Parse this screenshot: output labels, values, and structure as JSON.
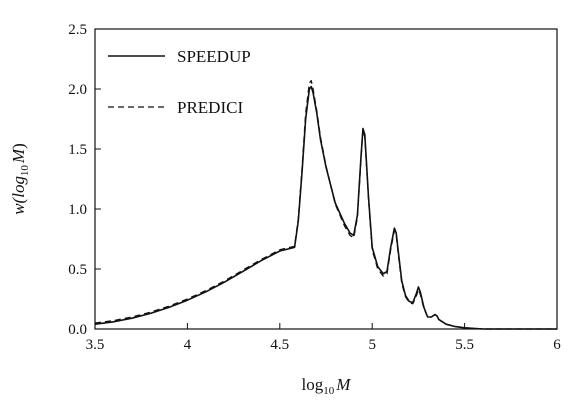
{
  "chart_data": {
    "type": "line",
    "title": "",
    "xlabel": {
      "base": "log",
      "sub": "10",
      "var": "M"
    },
    "ylabel": {
      "prefix": "w(log",
      "sub": "10",
      "var": "M",
      "suffix": ")"
    },
    "xlim": [
      3.5,
      6.0
    ],
    "ylim": [
      0.0,
      2.5
    ],
    "xticks": [
      3.5,
      4,
      4.5,
      5,
      5.5,
      6
    ],
    "xtick_labels": [
      "3.5",
      "4",
      "4.5",
      "5",
      "5.5",
      "6"
    ],
    "yticks": [
      0.0,
      0.5,
      1.0,
      1.5,
      2.0,
      2.5
    ],
    "ytick_labels": [
      "0.0",
      "0.5",
      "1.0",
      "1.5",
      "2.0",
      "2.5"
    ],
    "grid": false,
    "legend_position": "top-left",
    "series": [
      {
        "name": "SPEEDUP",
        "style": "solid",
        "color": "#111111",
        "x": [
          3.5,
          3.6,
          3.7,
          3.8,
          3.9,
          4.0,
          4.1,
          4.2,
          4.3,
          4.4,
          4.5,
          4.58,
          4.6,
          4.62,
          4.64,
          4.66,
          4.67,
          4.68,
          4.7,
          4.72,
          4.75,
          4.8,
          4.85,
          4.88,
          4.9,
          4.92,
          4.94,
          4.95,
          4.96,
          4.98,
          5.0,
          5.03,
          5.06,
          5.08,
          5.1,
          5.12,
          5.13,
          5.14,
          5.16,
          5.18,
          5.2,
          5.22,
          5.24,
          5.25,
          5.26,
          5.28,
          5.3,
          5.32,
          5.34,
          5.35,
          5.36,
          5.4,
          5.45,
          5.5,
          5.6,
          6.0
        ],
        "y": [
          0.04,
          0.06,
          0.09,
          0.13,
          0.18,
          0.24,
          0.31,
          0.39,
          0.48,
          0.57,
          0.65,
          0.68,
          0.9,
          1.3,
          1.75,
          2.0,
          2.02,
          1.97,
          1.8,
          1.58,
          1.35,
          1.05,
          0.88,
          0.8,
          0.78,
          0.95,
          1.45,
          1.67,
          1.62,
          1.1,
          0.68,
          0.52,
          0.46,
          0.48,
          0.68,
          0.84,
          0.8,
          0.66,
          0.4,
          0.28,
          0.23,
          0.22,
          0.3,
          0.35,
          0.31,
          0.18,
          0.1,
          0.1,
          0.12,
          0.11,
          0.08,
          0.04,
          0.02,
          0.01,
          0.0,
          0.0
        ]
      },
      {
        "name": "PREDICI",
        "style": "dashed",
        "color": "#111111",
        "x": [
          3.5,
          3.6,
          3.7,
          3.8,
          3.9,
          4.0,
          4.1,
          4.2,
          4.3,
          4.4,
          4.5,
          4.58,
          4.6,
          4.62,
          4.64,
          4.66,
          4.67,
          4.68,
          4.7,
          4.72,
          4.75,
          4.8,
          4.85,
          4.88,
          4.9,
          4.92,
          4.94,
          4.95,
          4.96,
          4.98,
          5.0,
          5.03,
          5.06,
          5.08,
          5.1,
          5.12,
          5.13,
          5.14,
          5.16,
          5.18,
          5.2,
          5.22,
          5.24,
          5.25,
          5.26,
          5.28,
          5.3,
          5.32,
          5.34,
          5.35,
          5.36,
          5.4,
          5.45,
          5.5,
          5.6,
          6.0
        ],
        "y": [
          0.05,
          0.07,
          0.1,
          0.14,
          0.19,
          0.25,
          0.32,
          0.4,
          0.49,
          0.58,
          0.66,
          0.69,
          0.92,
          1.33,
          1.8,
          2.05,
          2.07,
          2.0,
          1.82,
          1.6,
          1.36,
          1.04,
          0.86,
          0.78,
          0.76,
          0.93,
          1.43,
          1.66,
          1.6,
          1.08,
          0.66,
          0.5,
          0.44,
          0.46,
          0.66,
          0.82,
          0.78,
          0.64,
          0.38,
          0.27,
          0.22,
          0.21,
          0.28,
          0.33,
          0.29,
          0.17,
          0.1,
          0.1,
          0.12,
          0.11,
          0.08,
          0.04,
          0.02,
          0.01,
          0.0,
          0.0
        ]
      }
    ]
  }
}
